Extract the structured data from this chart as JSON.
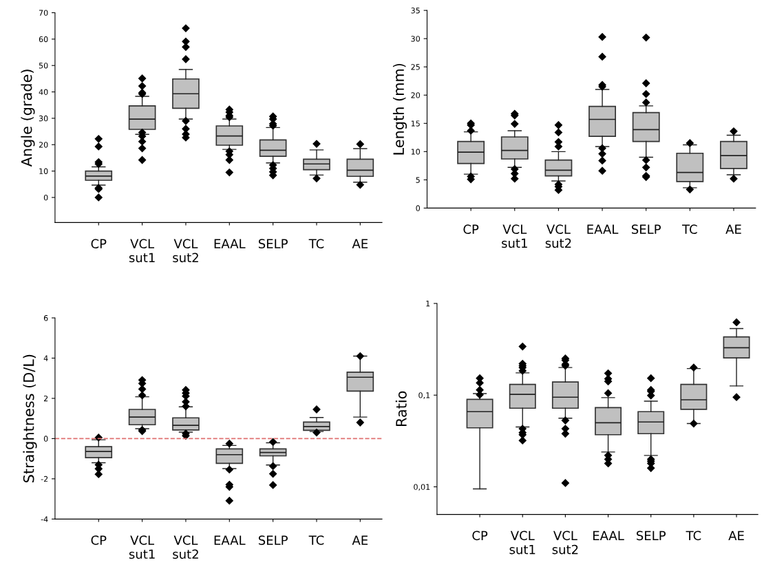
{
  "chart_data": [
    {
      "type": "box",
      "ylabel": "Angle (grade)",
      "categories": [
        "CP",
        "VCL\nsut1",
        "VCL\nsut2",
        "EAAL",
        "SELP",
        "TC",
        "AE"
      ],
      "color": "#c0c0c0",
      "ylim": [
        -9.5,
        70
      ],
      "yticks": [
        0,
        10,
        20,
        30,
        40,
        50,
        60,
        70
      ],
      "boxes": [
        {
          "low": 4.7,
          "q1": 6.5,
          "median": 8.1,
          "q3": 10.0,
          "high": 11.6,
          "outliers": [
            22.2,
            19.3,
            13.4,
            12.7,
            3.6,
            3.2,
            0
          ]
        },
        {
          "low": 23.9,
          "q1": 25.8,
          "median": 29.7,
          "q3": 34.7,
          "high": 38.3,
          "outliers": [
            45.1,
            42.2,
            39.7,
            39.2,
            24.6,
            23.2,
            21.2,
            18.6,
            14.2
          ]
        },
        {
          "low": 29.7,
          "q1": 33.8,
          "median": 39.3,
          "q3": 44.9,
          "high": 48.5,
          "outliers": [
            64.1,
            59.1,
            57.0,
            52.4,
            29.0,
            26.0,
            24.0,
            22.7
          ]
        },
        {
          "low": 18.2,
          "q1": 19.8,
          "median": 23.3,
          "q3": 27.1,
          "high": 29.7,
          "outliers": [
            33.3,
            32.3,
            31.0,
            30.4,
            17.5,
            16.2,
            14.2,
            9.5
          ]
        },
        {
          "low": 13.1,
          "q1": 15.6,
          "median": 17.9,
          "q3": 21.8,
          "high": 26.5,
          "outliers": [
            30.7,
            29.7,
            27.9,
            27.2,
            12.3,
            11.0,
            9.7,
            8.4
          ]
        },
        {
          "low": 8.5,
          "q1": 10.5,
          "median": 12.7,
          "q3": 14.5,
          "high": 18.0,
          "outliers": [
            20.3,
            7.2
          ]
        },
        {
          "low": 5.8,
          "q1": 8.0,
          "median": 10.3,
          "q3": 14.5,
          "high": 18.5,
          "outliers": [
            20.2,
            4.8
          ]
        }
      ]
    },
    {
      "type": "box",
      "ylabel": "Length (mm)",
      "categories": [
        "CP",
        "VCL\nsut1",
        "VCL\nsut2",
        "EAAL",
        "SELP",
        "TC",
        "AE"
      ],
      "color": "#c0c0c0",
      "ylim": [
        0,
        35
      ],
      "yticks": [
        0,
        5,
        10,
        15,
        20,
        25,
        30,
        35
      ],
      "boxes": [
        {
          "low": 6.0,
          "q1": 7.9,
          "median": 9.9,
          "q3": 11.8,
          "high": 13.5,
          "outliers": [
            15.0,
            14.7,
            13.7,
            5.6,
            5.1
          ]
        },
        {
          "low": 7.2,
          "q1": 8.7,
          "median": 10.2,
          "q3": 12.6,
          "high": 13.7,
          "outliers": [
            16.7,
            16.4,
            14.9,
            6.9,
            6.1,
            5.2
          ]
        },
        {
          "low": 4.8,
          "q1": 5.7,
          "median": 6.7,
          "q3": 8.5,
          "high": 10.0,
          "outliers": [
            14.7,
            13.4,
            11.7,
            10.9,
            4.2,
            3.8,
            3.2
          ]
        },
        {
          "low": 10.9,
          "q1": 12.7,
          "median": 15.7,
          "q3": 18.0,
          "high": 21.0,
          "outliers": [
            30.3,
            26.8,
            21.8,
            21.5,
            10.6,
            9.6,
            8.4,
            6.6
          ]
        },
        {
          "low": 9.0,
          "q1": 11.8,
          "median": 13.9,
          "q3": 16.9,
          "high": 18.1,
          "outliers": [
            30.2,
            22.1,
            20.2,
            18.7,
            8.5,
            7.2,
            5.7,
            5.5
          ]
        },
        {
          "low": 3.6,
          "q1": 4.7,
          "median": 6.3,
          "q3": 9.7,
          "high": 11.2,
          "outliers": [
            11.5,
            3.3
          ]
        },
        {
          "low": 5.9,
          "q1": 7.0,
          "median": 9.3,
          "q3": 11.8,
          "high": 12.9,
          "outliers": [
            13.6,
            5.2
          ]
        }
      ]
    },
    {
      "type": "box",
      "ylabel": "Straightness (D/L)",
      "categories": [
        "CP",
        "VCL\nsut1",
        "VCL\nsut2",
        "EAAL",
        "SELP",
        "TC",
        "AE"
      ],
      "color": "#c0c0c0",
      "ylim": [
        -4,
        6
      ],
      "yticks": [
        -4,
        -2,
        0,
        2,
        4,
        6
      ],
      "ref_lines": [
        {
          "axis": "y",
          "value": 0,
          "color": "#e07070",
          "line_style": "dashed"
        }
      ],
      "boxes": [
        {
          "low": -1.2,
          "q1": -0.95,
          "median": -0.64,
          "q3": -0.4,
          "high": -0.06,
          "outliers": [
            0.05,
            -1.3,
            -1.5,
            -1.77
          ]
        },
        {
          "low": 0.49,
          "q1": 0.69,
          "median": 1.07,
          "q3": 1.45,
          "high": 2.08,
          "outliers": [
            2.91,
            2.74,
            2.46,
            2.15,
            0.43,
            0.37
          ]
        },
        {
          "low": 0.32,
          "q1": 0.43,
          "median": 0.66,
          "q3": 1.03,
          "high": 1.58,
          "outliers": [
            2.42,
            2.26,
            2.11,
            1.83,
            1.6,
            0.25,
            0.14
          ]
        },
        {
          "low": -1.49,
          "q1": -1.23,
          "median": -0.8,
          "q3": -0.51,
          "high": -0.34,
          "outliers": [
            -0.25,
            -1.54,
            -2.29,
            -2.4,
            -3.09
          ]
        },
        {
          "low": -1.31,
          "q1": -0.86,
          "median": -0.69,
          "q3": -0.51,
          "high": -0.21,
          "outliers": [
            -0.17,
            -1.37,
            -1.75,
            -2.31
          ]
        },
        {
          "low": 0.35,
          "q1": 0.41,
          "median": 0.6,
          "q3": 0.82,
          "high": 1.05,
          "outliers": [
            1.45,
            0.3
          ]
        },
        {
          "low": 1.07,
          "q1": 2.36,
          "median": 3.05,
          "q3": 3.3,
          "high": 4.1,
          "outliers": [
            4.1,
            0.8
          ]
        }
      ]
    },
    {
      "type": "box",
      "ylabel": "Ratio",
      "log": true,
      "categories": [
        "CP",
        "VCL\nsut1",
        "VCL\nsut2",
        "EAAL",
        "SELP",
        "TC",
        "AE"
      ],
      "color": "#c0c0c0",
      "ylim": [
        0.005,
        1
      ],
      "yticks": [
        {
          "value": 0.01,
          "label": "0,01"
        },
        {
          "value": 0.1,
          "label": "0,1"
        },
        1
      ],
      "boxes": [
        {
          "low": 0.0095,
          "q1": 0.044,
          "median": 0.066,
          "q3": 0.09,
          "high": 0.104,
          "outliers": [
            0.153,
            0.136,
            0.114,
            0.101
          ]
        },
        {
          "low": 0.045,
          "q1": 0.072,
          "median": 0.102,
          "q3": 0.131,
          "high": 0.175,
          "outliers": [
            0.339,
            0.22,
            0.209,
            0.2,
            0.184,
            0.043,
            0.039,
            0.037,
            0.032
          ]
        },
        {
          "low": 0.056,
          "q1": 0.072,
          "median": 0.095,
          "q3": 0.139,
          "high": 0.2,
          "outliers": [
            0.251,
            0.24,
            0.217,
            0.209,
            0.053,
            0.043,
            0.038,
            0.011
          ]
        },
        {
          "low": 0.024,
          "q1": 0.037,
          "median": 0.05,
          "q3": 0.073,
          "high": 0.094,
          "outliers": [
            0.173,
            0.151,
            0.141,
            0.105,
            0.022,
            0.02,
            0.018
          ]
        },
        {
          "low": 0.022,
          "q1": 0.038,
          "median": 0.051,
          "q3": 0.066,
          "high": 0.086,
          "outliers": [
            0.153,
            0.114,
            0.11,
            0.099,
            0.02,
            0.019,
            0.018,
            0.016
          ]
        },
        {
          "low": 0.049,
          "q1": 0.07,
          "median": 0.089,
          "q3": 0.131,
          "high": 0.195,
          "outliers": [
            0.2,
            0.049
          ]
        },
        {
          "low": 0.126,
          "q1": 0.255,
          "median": 0.329,
          "q3": 0.431,
          "high": 0.532,
          "outliers": [
            0.622,
            0.095
          ]
        }
      ]
    }
  ]
}
